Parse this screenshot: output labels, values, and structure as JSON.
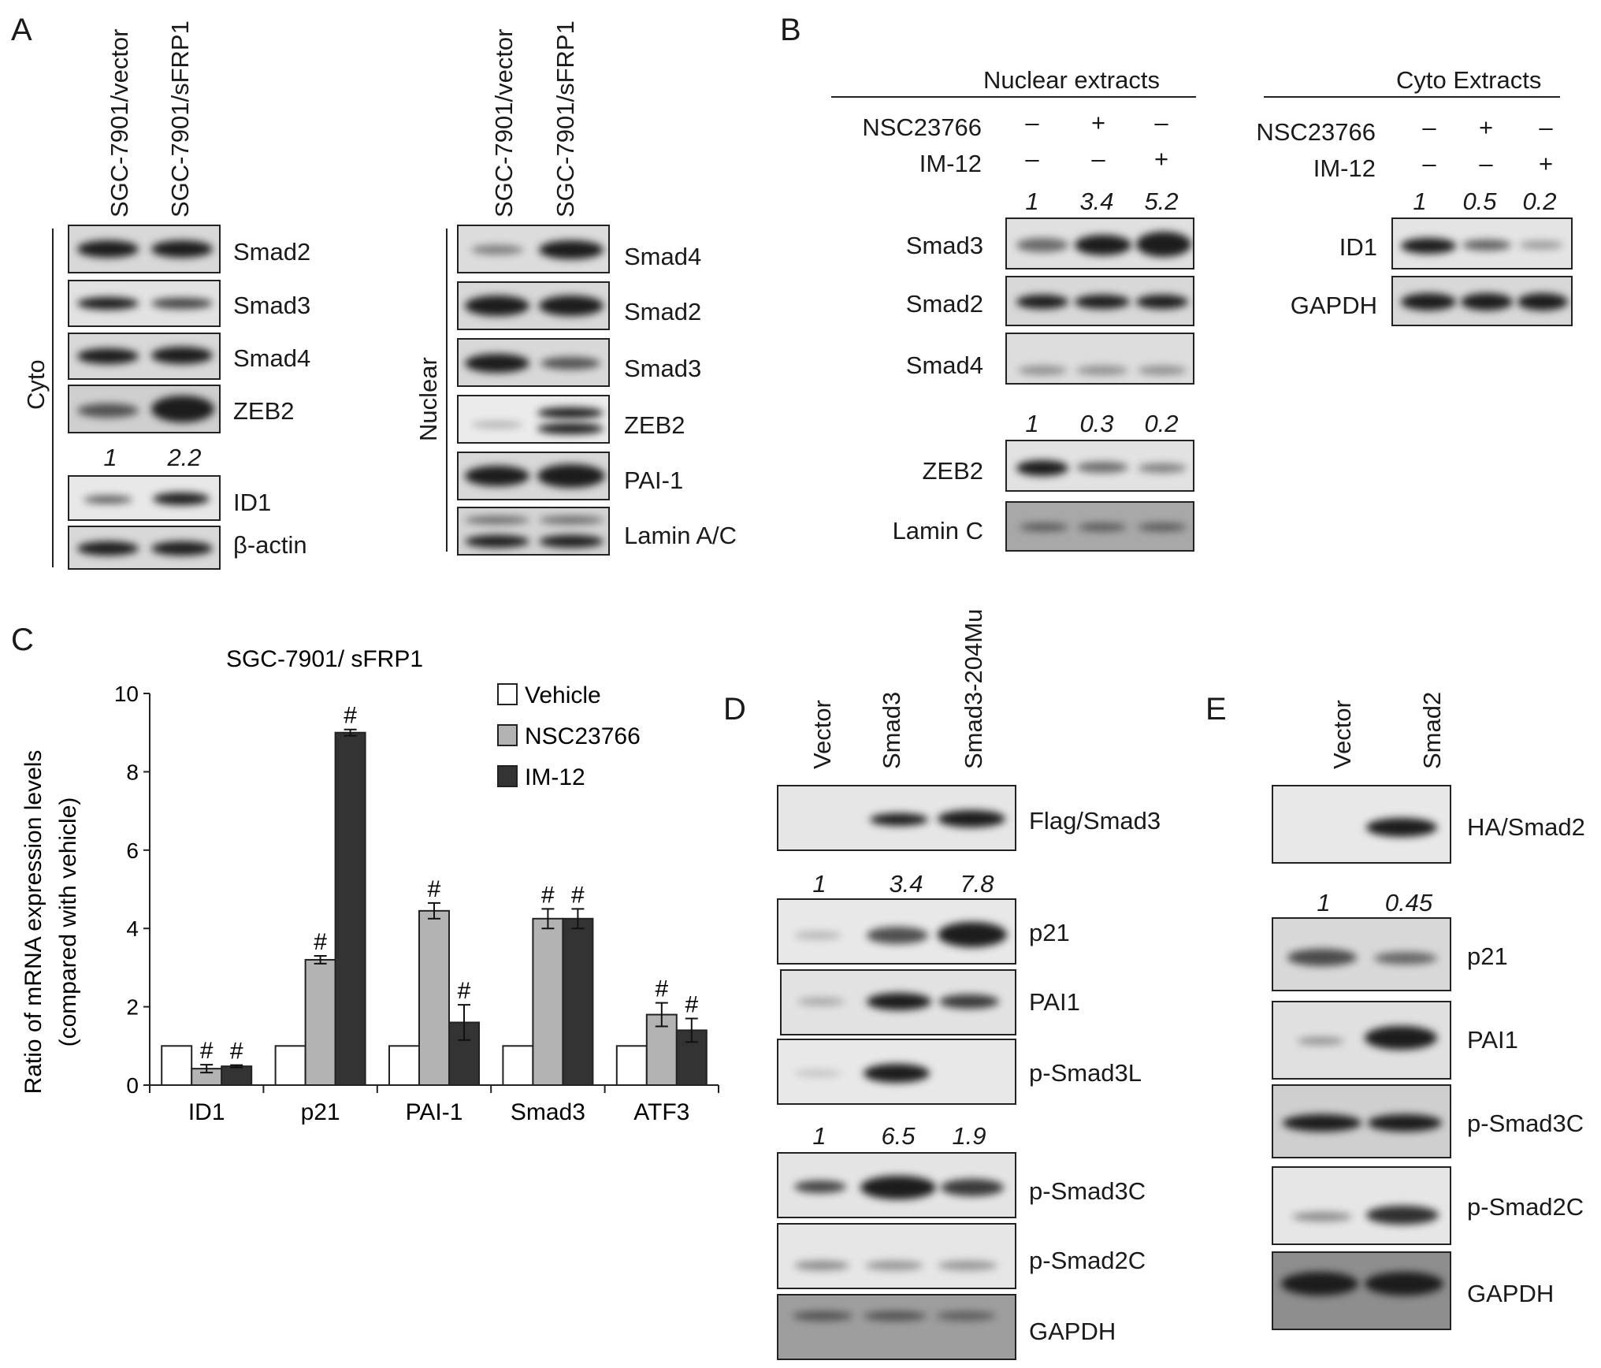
{
  "panels": {
    "A": "A",
    "B": "B",
    "C": "C",
    "D": "D",
    "E": "E"
  },
  "panelA": {
    "lanes": [
      "SGC-7901/vector",
      "SGC-7901/sFRP1"
    ],
    "cyto_label": "Cyto",
    "nuclear_label": "Nuclear",
    "cyto_blots": [
      "Smad2",
      "Smad3",
      "Smad4",
      "ZEB2",
      "ID1",
      "β-actin"
    ],
    "cyto_quant": [
      "1",
      "2.2"
    ],
    "nuclear_blots": [
      "Smad4",
      "Smad2",
      "Smad3",
      "ZEB2",
      "PAI-1",
      "Lamin A/C"
    ]
  },
  "panelB": {
    "nuclear_header": "Nuclear extracts",
    "cyto_header": "Cyto Extracts",
    "treatments": [
      {
        "name": "NSC23766",
        "signs": [
          "–",
          "+",
          "–"
        ]
      },
      {
        "name": "IM-12",
        "signs": [
          "–",
          "–",
          "+"
        ]
      }
    ],
    "nuclear_quant_top": [
      "1",
      "3.4",
      "5.2"
    ],
    "nuclear_quant_zeb2": [
      "1",
      "0.3",
      "0.2"
    ],
    "cyto_quant": [
      "1",
      "0.5",
      "0.2"
    ],
    "nuclear_blots": [
      "Smad3",
      "Smad2",
      "Smad4",
      "ZEB2",
      "Lamin C"
    ],
    "cyto_blots": [
      "ID1",
      "GAPDH"
    ]
  },
  "panelD": {
    "lanes": [
      "Vector",
      "Smad3",
      "Smad3-204Mu"
    ],
    "quant_p21": [
      "1",
      "3.4",
      "7.8"
    ],
    "quant_psmad3c": [
      "1",
      "6.5",
      "1.9"
    ],
    "blots": [
      "Flag/Smad3",
      "p21",
      "PAI1",
      "p-Smad3L",
      "p-Smad3C",
      "p-Smad2C",
      "GAPDH"
    ]
  },
  "panelE": {
    "lanes": [
      "Vector",
      "Smad2"
    ],
    "quant_p21": [
      "1",
      "0.45"
    ],
    "blots": [
      "HA/Smad2",
      "p21",
      "PAI1",
      "p-Smad3C",
      "p-Smad2C",
      "GAPDH"
    ]
  },
  "chart_data": {
    "type": "bar",
    "title": "SGC-7901/ sFRP1",
    "ylabel": "Ratio of mRNA expression levels (compared with vehicle)",
    "ylabel_lines": [
      "Ratio of mRNA expression levels",
      "(compared with vehicle)"
    ],
    "xlabel": "",
    "ylim": [
      0,
      10
    ],
    "yticks": [
      0,
      2,
      4,
      6,
      8,
      10
    ],
    "categories": [
      "ID1",
      "p21",
      "PAI-1",
      "Smad3",
      "ATF3"
    ],
    "series": [
      {
        "name": "Vehicle",
        "color": "#ffffff",
        "values": [
          1,
          1,
          1,
          1,
          1
        ],
        "errors": [
          0,
          0,
          0,
          0,
          0
        ],
        "marks": [
          "",
          "",
          "",
          "",
          ""
        ]
      },
      {
        "name": "NSC23766",
        "color": "#b3b3b3",
        "values": [
          0.42,
          3.2,
          4.45,
          4.25,
          1.8
        ],
        "errors": [
          0.1,
          0.1,
          0.2,
          0.25,
          0.3
        ],
        "marks": [
          "#",
          "#",
          "#",
          "#",
          "#"
        ]
      },
      {
        "name": "IM-12",
        "color": "#333333",
        "values": [
          0.48,
          9.0,
          1.6,
          4.25,
          1.4
        ],
        "errors": [
          0.03,
          0.08,
          0.45,
          0.25,
          0.3
        ],
        "marks": [
          "#",
          "#",
          "#",
          "#",
          "#"
        ]
      }
    ],
    "legend_position": "top-right",
    "grid": false
  }
}
